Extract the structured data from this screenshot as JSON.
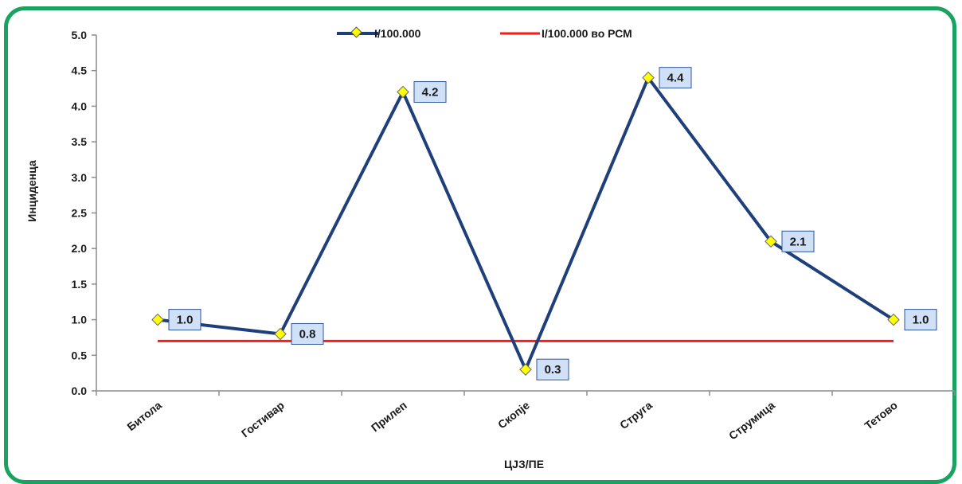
{
  "chart_data": {
    "type": "line",
    "categories": [
      "Битола",
      "Гостивар",
      "Прилеп",
      "Скопје",
      "Струга",
      "Струмица",
      "Тетово"
    ],
    "series": [
      {
        "name": "I/100.000",
        "values": [
          1.0,
          0.8,
          4.2,
          0.3,
          4.4,
          2.1,
          1.0
        ],
        "color": "#1f3f7a",
        "marker_color": "#ffff00"
      },
      {
        "name": "I/100.000 во РСМ",
        "values": [
          0.7,
          0.7,
          0.7,
          0.7,
          0.7,
          0.7,
          0.7
        ],
        "color": "#ff1a1a"
      }
    ],
    "data_labels": [
      "1.0",
      "0.8",
      "4.2",
      "0.3",
      "4.4",
      "2.1",
      "1.0"
    ],
    "yticks": [
      "0.0",
      "0.5",
      "1.0",
      "1.5",
      "2.0",
      "2.5",
      "3.0",
      "3.5",
      "4.0",
      "4.5",
      "5.0"
    ],
    "xlabel": "ЦЈЗ/ПЕ",
    "ylabel": "Инциденца",
    "ylim": [
      0,
      5
    ],
    "grid": false,
    "legend_position": "top",
    "frame_color": "#1aa260",
    "label_box_fill": "#cfe0f7",
    "label_box_stroke": "#2f5597"
  }
}
